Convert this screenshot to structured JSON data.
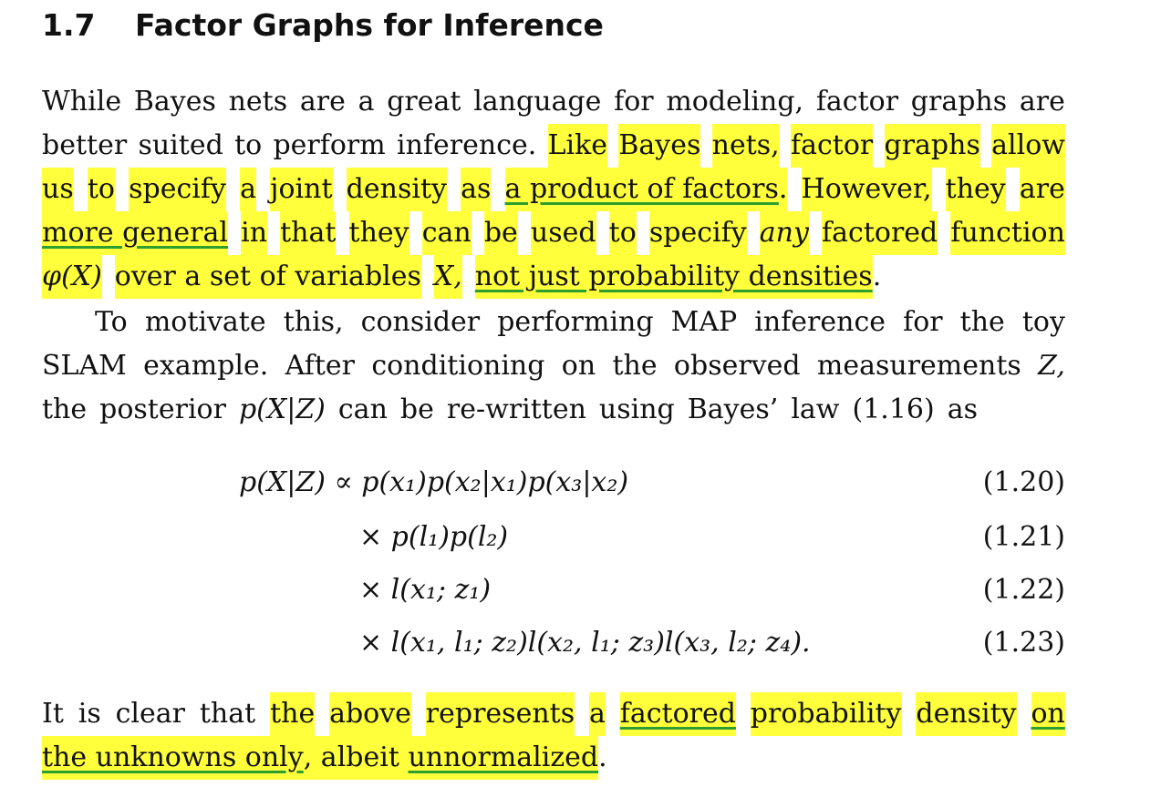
{
  "section": {
    "number": "1.7",
    "title": "Factor Graphs for Inference"
  },
  "paragraph1": {
    "line1": [
      "While",
      "Bayes",
      "nets",
      "are",
      "a",
      "great",
      "language",
      "for",
      "modeling,",
      "factor",
      "graphs",
      "are"
    ],
    "line2_plain": [
      "better",
      "suited",
      "to",
      "perform",
      "inference."
    ],
    "line2_hl": [
      "Like",
      "Bayes",
      "nets,",
      "factor",
      "graphs",
      "allow"
    ],
    "line3_hl_a": [
      "us",
      "to",
      "specify",
      "a",
      "joint",
      "density",
      "as"
    ],
    "line3_ul": "a product of factors",
    "line3_hl_b": [
      ".",
      "However,",
      "they",
      "are"
    ],
    "line4_ul": "more general",
    "line4_hl": [
      "in",
      "that",
      "they",
      "can",
      "be",
      "used",
      "to",
      "specify"
    ],
    "line4_it": "any",
    "line4_hl_b": [
      "factored",
      "function"
    ],
    "line5_math": "φ(X)",
    "line5_hl": [
      "over",
      "a",
      "set",
      "of",
      "variables"
    ],
    "line5_var": "X,",
    "line5_ul": "not just probability densities",
    "line5_end": "."
  },
  "paragraph2": {
    "line1": [
      "To",
      "motivate",
      "this,",
      "consider",
      "performing",
      "MAP",
      "inference",
      "for",
      "the",
      "toy"
    ],
    "line2": [
      "SLAM",
      "example.",
      "After",
      "conditioning",
      "on",
      "the",
      "observed",
      "measurements",
      "Z,"
    ],
    "line3": [
      "the",
      "posterior",
      "p(X|Z)",
      "can",
      "be",
      "re-written",
      "using",
      "Bayes’",
      "law",
      "(1.16)",
      "as"
    ]
  },
  "equations": [
    {
      "lhs": "p(X|Z) ∝ ",
      "rhs": "p(x₁)p(x₂|x₁)p(x₃|x₂)",
      "number": "(1.20)"
    },
    {
      "lhs": "",
      "rhs": "× p(l₁)p(l₂)",
      "number": "(1.21)"
    },
    {
      "lhs": "",
      "rhs": "× l(x₁; z₁)",
      "number": "(1.22)"
    },
    {
      "lhs": "",
      "rhs": "× l(x₁, l₁; z₂)l(x₂, l₁; z₃)l(x₃, l₂; z₄).",
      "number": "(1.23)"
    }
  ],
  "paragraph3": {
    "line1_plain": [
      "It",
      "is",
      "clear",
      "that"
    ],
    "line1_hl": [
      "the",
      "above",
      "represents",
      "a"
    ],
    "line1_ul": "factored",
    "line1_hl_b": [
      "probability",
      "density"
    ],
    "line1_ul_b": "on",
    "line2_ul": "the unknowns only",
    "line2_hl": [
      ",",
      "albeit"
    ],
    "line2_ul_b": "unnormalized",
    "line2_end": "."
  },
  "colors": {
    "highlight": "#ffff3b",
    "underline": "#2e9e2e"
  }
}
